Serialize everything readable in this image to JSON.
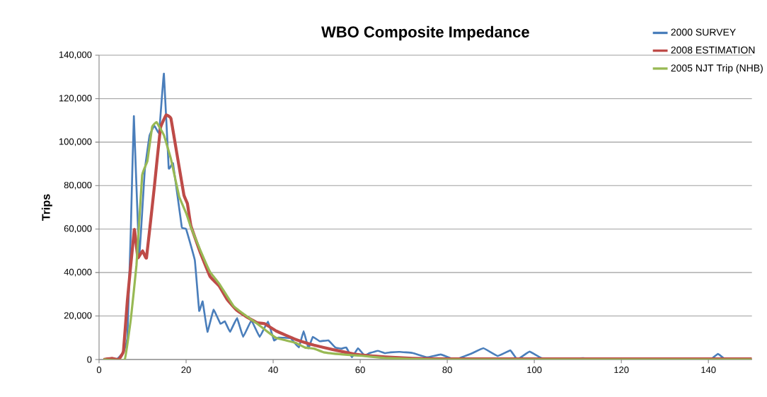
{
  "chart_data": {
    "type": "line",
    "title": "WBO Composite Impedance",
    "ylabel": "Trips",
    "xlim": [
      0,
      150
    ],
    "xticks": [
      0,
      20,
      40,
      60,
      80,
      100,
      120,
      140
    ],
    "ylim": [
      0,
      140000
    ],
    "yticks": [
      {
        "value": 0,
        "label": "0"
      },
      {
        "value": 20000,
        "label": "20,000"
      },
      {
        "value": 40000,
        "label": "40,000"
      },
      {
        "value": 60000,
        "label": "60,000"
      },
      {
        "value": 80000,
        "label": "80,000"
      },
      {
        "value": 100000,
        "label": "100,000"
      },
      {
        "value": 120000,
        "label": "120,000"
      },
      {
        "value": 140000,
        "label": "140,000"
      }
    ],
    "grid": "y",
    "legend": "top right",
    "marker": "none",
    "series": [
      {
        "name": "2000 SURVEY",
        "color": "#4a7ebb",
        "x": [
          1,
          4,
          5.6,
          6.5,
          7.3,
          8,
          9.2,
          10.5,
          11.6,
          12.7,
          13.8,
          14.9,
          16,
          17,
          19,
          20,
          22,
          23,
          23.8,
          24.9,
          26.3,
          27.9,
          28.9,
          30.1,
          31.7,
          33.1,
          35,
          36.9,
          38.8,
          40.2,
          41.2,
          44,
          45.9,
          47,
          48.1,
          49.1,
          50.7,
          52.7,
          54.3,
          55.7,
          56.8,
          58.1,
          59.5,
          61,
          62.2,
          64.1,
          65.7,
          67,
          69.1,
          72,
          75.4,
          78.5,
          81.7,
          85.4,
          88.3,
          91.6,
          94.5,
          96.1,
          98.9,
          101.7,
          106,
          111.2,
          115,
          126.8,
          130,
          138.6,
          140.5,
          142.2,
          144,
          150
        ],
        "values": [
          0,
          0,
          3300,
          10000,
          60000,
          112000,
          47000,
          87000,
          103000,
          107600,
          104300,
          131500,
          88000,
          90200,
          61000,
          60000,
          45700,
          22400,
          26700,
          12700,
          22900,
          16400,
          17600,
          12700,
          19100,
          10400,
          18000,
          10400,
          17500,
          8800,
          10100,
          9800,
          5500,
          13100,
          5200,
          10400,
          8400,
          8800,
          5500,
          5000,
          5500,
          1000,
          5200,
          1800,
          3000,
          4000,
          2900,
          3300,
          3500,
          3000,
          1000,
          2300,
          0,
          2600,
          5200,
          1600,
          4200,
          0,
          3600,
          600,
          0,
          600,
          0,
          300,
          0,
          500,
          0,
          2600,
          0,
          0
        ]
      },
      {
        "name": "2008 ESTIMATION",
        "color": "#be4b48",
        "x": [
          1,
          3,
          4.5,
          5.6,
          6.5,
          8.1,
          8.9,
          10,
          10.9,
          12.7,
          14.1,
          15.4,
          16.5,
          17.9,
          19.5,
          20.3,
          21.1,
          23.3,
          25.5,
          27.6,
          29.5,
          31.5,
          34,
          36.3,
          38,
          40.7,
          45.1,
          49.4,
          53.8,
          59.2,
          65.7,
          72,
          80,
          150
        ],
        "values": [
          0,
          500,
          0,
          3700,
          27000,
          59800,
          46800,
          50000,
          46800,
          79400,
          106500,
          112500,
          111000,
          94500,
          75600,
          71700,
          61500,
          49000,
          38200,
          33800,
          27400,
          22900,
          19500,
          16900,
          16500,
          13100,
          9300,
          6600,
          4500,
          2300,
          1200,
          500,
          300,
          300
        ]
      },
      {
        "name": "2005 NJT Trip (NHB)",
        "color": "#98b954",
        "x": [
          1,
          5.9,
          7.3,
          8.6,
          9.9,
          11.1,
          12.2,
          13.2,
          14.9,
          16.5,
          18.4,
          20,
          21.1,
          23.3,
          25.5,
          27.6,
          30.9,
          33.5,
          36.3,
          38.5,
          40.7,
          45.1,
          47.3,
          49.4,
          51.6,
          56,
          60.3,
          65.7,
          72,
          80,
          150
        ],
        "values": [
          0,
          0,
          18600,
          43500,
          84800,
          91300,
          107000,
          109200,
          103200,
          92400,
          75000,
          67400,
          60900,
          50100,
          40300,
          34900,
          24600,
          20500,
          16500,
          13100,
          9900,
          7700,
          5500,
          5000,
          3300,
          2300,
          1700,
          700,
          200,
          0,
          0
        ]
      }
    ]
  }
}
